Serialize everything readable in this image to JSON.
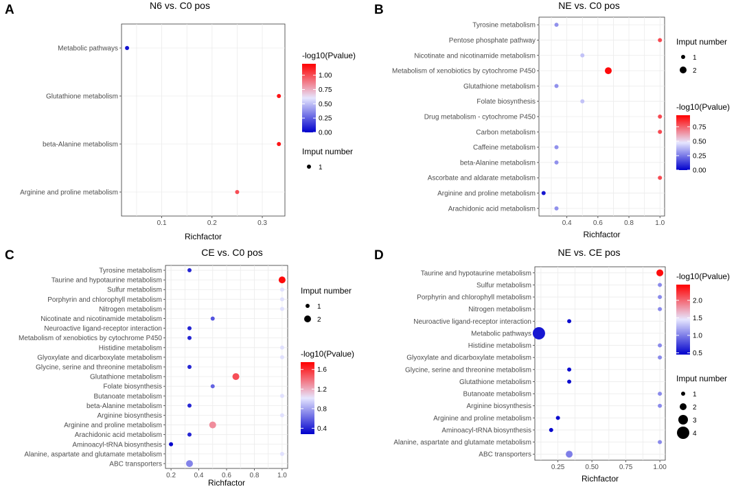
{
  "colors": {
    "low": "#0000cc",
    "mid": "#e6e6ff",
    "high": "#ff0000",
    "grid": "#ebebeb",
    "frame": "#333333"
  },
  "chart_data": [
    {
      "letter": "A",
      "type": "scatter",
      "title": "N6 vs. C0 pos",
      "xlabel": "Richfactor",
      "xlim": [
        0.02,
        0.345
      ],
      "xticks": [
        "0.1",
        "0.2",
        "0.3"
      ],
      "xtick_values": [
        0.1,
        0.2,
        0.3
      ],
      "pvalue_title": "-log10(Pvalue)",
      "pvalue_range": [
        0.0,
        1.2
      ],
      "pvalue_ticks": [
        "0.00",
        "0.25",
        "0.50",
        "0.75",
        "1.00"
      ],
      "pvalue_tick_values": [
        0.0,
        0.25,
        0.5,
        0.75,
        1.0
      ],
      "count_title": "Imput number",
      "count_legend": [
        "1"
      ],
      "legend_order": "pvalue-first",
      "points": [
        {
          "pathway": "Metabolic pathways",
          "richfactor": 0.031,
          "pvalue": 0.05,
          "count": 1
        },
        {
          "pathway": "Glutathione metabolism",
          "richfactor": 0.333,
          "pvalue": 1.15,
          "count": 1
        },
        {
          "pathway": "beta-Alanine metabolism",
          "richfactor": 0.333,
          "pvalue": 1.15,
          "count": 1
        },
        {
          "pathway": "Arginine and proline metabolism",
          "richfactor": 0.25,
          "pvalue": 1.0,
          "count": 1
        }
      ]
    },
    {
      "letter": "B",
      "type": "scatter",
      "title": "NE vs. C0 pos",
      "xlabel": "Richfactor",
      "xlim": [
        0.22,
        1.03
      ],
      "xticks": [
        "0.4",
        "0.6",
        "0.8",
        "1.0"
      ],
      "xtick_values": [
        0.4,
        0.6,
        0.8,
        1.0
      ],
      "pvalue_title": "-log10(Pvalue)",
      "pvalue_range": [
        0.0,
        0.95
      ],
      "pvalue_ticks": [
        "0.00",
        "0.25",
        "0.50",
        "0.75"
      ],
      "pvalue_tick_values": [
        0.0,
        0.25,
        0.5,
        0.75
      ],
      "count_title": "Imput number",
      "count_legend": [
        "1",
        "2"
      ],
      "legend_order": "count-first",
      "points": [
        {
          "pathway": "Tyrosine metabolism",
          "richfactor": 0.333,
          "pvalue": 0.3,
          "count": 1
        },
        {
          "pathway": "Pentose phosphate pathway",
          "richfactor": 1.0,
          "pvalue": 0.8,
          "count": 1
        },
        {
          "pathway": "Nicotinate and nicotinamide metabolism",
          "richfactor": 0.5,
          "pvalue": 0.4,
          "count": 1
        },
        {
          "pathway": "Metabolism of xenobiotics by cytochrome P450",
          "richfactor": 0.667,
          "pvalue": 0.93,
          "count": 2
        },
        {
          "pathway": "Glutathione metabolism",
          "richfactor": 0.333,
          "pvalue": 0.3,
          "count": 1
        },
        {
          "pathway": "Folate biosynthesis",
          "richfactor": 0.5,
          "pvalue": 0.4,
          "count": 1
        },
        {
          "pathway": "Drug metabolism - cytochrome P450",
          "richfactor": 1.0,
          "pvalue": 0.8,
          "count": 1
        },
        {
          "pathway": "Carbon metabolism",
          "richfactor": 1.0,
          "pvalue": 0.8,
          "count": 1
        },
        {
          "pathway": "Caffeine metabolism",
          "richfactor": 0.333,
          "pvalue": 0.3,
          "count": 1
        },
        {
          "pathway": "beta-Alanine metabolism",
          "richfactor": 0.333,
          "pvalue": 0.3,
          "count": 1
        },
        {
          "pathway": "Ascorbate and aldarate metabolism",
          "richfactor": 1.0,
          "pvalue": 0.8,
          "count": 1
        },
        {
          "pathway": "Arginine and proline metabolism",
          "richfactor": 0.25,
          "pvalue": 0.05,
          "count": 1
        },
        {
          "pathway": "Arachidonic acid metabolism",
          "richfactor": 0.333,
          "pvalue": 0.3,
          "count": 1
        }
      ]
    },
    {
      "letter": "C",
      "type": "scatter",
      "title": "CE vs. C0 pos",
      "xlabel": "Richfactor",
      "xlim": [
        0.16,
        1.04
      ],
      "xticks": [
        "0.2",
        "0.4",
        "0.6",
        "0.8",
        "1.0"
      ],
      "xtick_values": [
        0.2,
        0.4,
        0.6,
        0.8,
        1.0
      ],
      "pvalue_title": "-log10(Pvalue)",
      "pvalue_range": [
        0.28,
        1.75
      ],
      "pvalue_ticks": [
        "0.4",
        "0.8",
        "1.2",
        "1.6"
      ],
      "pvalue_tick_values": [
        0.4,
        0.8,
        1.2,
        1.6
      ],
      "count_title": "Imput number",
      "count_legend": [
        "1",
        "2"
      ],
      "legend_order": "count-first",
      "points": [
        {
          "pathway": "Tyrosine metabolism",
          "richfactor": 0.333,
          "pvalue": 0.4,
          "count": 1
        },
        {
          "pathway": "Taurine and hypotaurine metabolism",
          "richfactor": 1.0,
          "pvalue": 1.72,
          "count": 2
        },
        {
          "pathway": "Sulfur metabolism",
          "richfactor": 1.0,
          "pvalue": 1.0,
          "count": 1
        },
        {
          "pathway": "Porphyrin and chlorophyll metabolism",
          "richfactor": 1.0,
          "pvalue": 1.0,
          "count": 1
        },
        {
          "pathway": "Nitrogen metabolism",
          "richfactor": 1.0,
          "pvalue": 1.0,
          "count": 1
        },
        {
          "pathway": "Nicotinate and nicotinamide metabolism",
          "richfactor": 0.5,
          "pvalue": 0.55,
          "count": 1
        },
        {
          "pathway": "Neuroactive ligand-receptor interaction",
          "richfactor": 0.333,
          "pvalue": 0.4,
          "count": 1
        },
        {
          "pathway": "Metabolism of xenobiotics by cytochrome P450",
          "richfactor": 0.333,
          "pvalue": 0.4,
          "count": 1
        },
        {
          "pathway": "Histidine metabolism",
          "richfactor": 1.0,
          "pvalue": 1.0,
          "count": 1
        },
        {
          "pathway": "Glyoxylate and dicarboxylate metabolism",
          "richfactor": 1.0,
          "pvalue": 1.0,
          "count": 1
        },
        {
          "pathway": "Glycine, serine and threonine metabolism",
          "richfactor": 0.333,
          "pvalue": 0.4,
          "count": 1
        },
        {
          "pathway": "Glutathione metabolism",
          "richfactor": 0.667,
          "pvalue": 1.5,
          "count": 2
        },
        {
          "pathway": "Folate biosynthesis",
          "richfactor": 0.5,
          "pvalue": 0.6,
          "count": 1
        },
        {
          "pathway": "Butanoate metabolism",
          "richfactor": 1.0,
          "pvalue": 1.0,
          "count": 1
        },
        {
          "pathway": "beta-Alanine metabolism",
          "richfactor": 0.333,
          "pvalue": 0.4,
          "count": 1
        },
        {
          "pathway": "Arginine biosynthesis",
          "richfactor": 1.0,
          "pvalue": 1.0,
          "count": 1
        },
        {
          "pathway": "Arginine and proline metabolism",
          "richfactor": 0.5,
          "pvalue": 1.3,
          "count": 2
        },
        {
          "pathway": "Arachidonic acid metabolism",
          "richfactor": 0.333,
          "pvalue": 0.4,
          "count": 1
        },
        {
          "pathway": "Aminoacyl-tRNA biosynthesis",
          "richfactor": 0.2,
          "pvalue": 0.3,
          "count": 1
        },
        {
          "pathway": "Alanine, aspartate and glutamate metabolism",
          "richfactor": 1.0,
          "pvalue": 1.0,
          "count": 1
        },
        {
          "pathway": "ABC transporters",
          "richfactor": 0.333,
          "pvalue": 0.7,
          "count": 2
        }
      ]
    },
    {
      "letter": "D",
      "type": "scatter",
      "title": "NE vs. CE pos",
      "xlabel": "Richfactor",
      "xlim": [
        0.08,
        1.04
      ],
      "xticks": [
        "0.25",
        "0.50",
        "0.75",
        "1.00"
      ],
      "xtick_values": [
        0.25,
        0.5,
        0.75,
        1.0
      ],
      "pvalue_title": "-log10(Pvalue)",
      "pvalue_range": [
        0.45,
        2.45
      ],
      "pvalue_ticks": [
        "0.5",
        "1.0",
        "1.5",
        "2.0"
      ],
      "pvalue_tick_values": [
        0.5,
        1.0,
        1.5,
        2.0
      ],
      "count_title": "Imput number",
      "count_legend": [
        "1",
        "2",
        "3",
        "4"
      ],
      "legend_order": "pvalue-first",
      "points": [
        {
          "pathway": "Taurine and hypotaurine metabolism",
          "richfactor": 1.0,
          "pvalue": 2.4,
          "count": 2
        },
        {
          "pathway": "Sulfur metabolism",
          "richfactor": 1.0,
          "pvalue": 1.05,
          "count": 1
        },
        {
          "pathway": "Porphyrin and chlorophyll metabolism",
          "richfactor": 1.0,
          "pvalue": 1.05,
          "count": 1
        },
        {
          "pathway": "Nitrogen metabolism",
          "richfactor": 1.0,
          "pvalue": 1.05,
          "count": 1
        },
        {
          "pathway": "Neuroactive ligand-receptor interaction",
          "richfactor": 0.333,
          "pvalue": 0.5,
          "count": 1
        },
        {
          "pathway": "Metabolic pathways",
          "richfactor": 0.11,
          "pvalue": 0.55,
          "count": 4
        },
        {
          "pathway": "Histidine metabolism",
          "richfactor": 1.0,
          "pvalue": 1.05,
          "count": 1
        },
        {
          "pathway": "Glyoxylate and dicarboxylate metabolism",
          "richfactor": 1.0,
          "pvalue": 1.05,
          "count": 1
        },
        {
          "pathway": "Glycine, serine and threonine metabolism",
          "richfactor": 0.333,
          "pvalue": 0.5,
          "count": 1
        },
        {
          "pathway": "Glutathione metabolism",
          "richfactor": 0.333,
          "pvalue": 0.5,
          "count": 1
        },
        {
          "pathway": "Butanoate metabolism",
          "richfactor": 1.0,
          "pvalue": 1.05,
          "count": 1
        },
        {
          "pathway": "Arginine biosynthesis",
          "richfactor": 1.0,
          "pvalue": 1.05,
          "count": 1
        },
        {
          "pathway": "Arginine and proline metabolism",
          "richfactor": 0.25,
          "pvalue": 0.5,
          "count": 1
        },
        {
          "pathway": "Aminoacyl-tRNA biosynthesis",
          "richfactor": 0.2,
          "pvalue": 0.45,
          "count": 1
        },
        {
          "pathway": "Alanine, aspartate and glutamate metabolism",
          "richfactor": 1.0,
          "pvalue": 1.05,
          "count": 1
        },
        {
          "pathway": "ABC transporters",
          "richfactor": 0.333,
          "pvalue": 1.0,
          "count": 2
        }
      ]
    }
  ]
}
